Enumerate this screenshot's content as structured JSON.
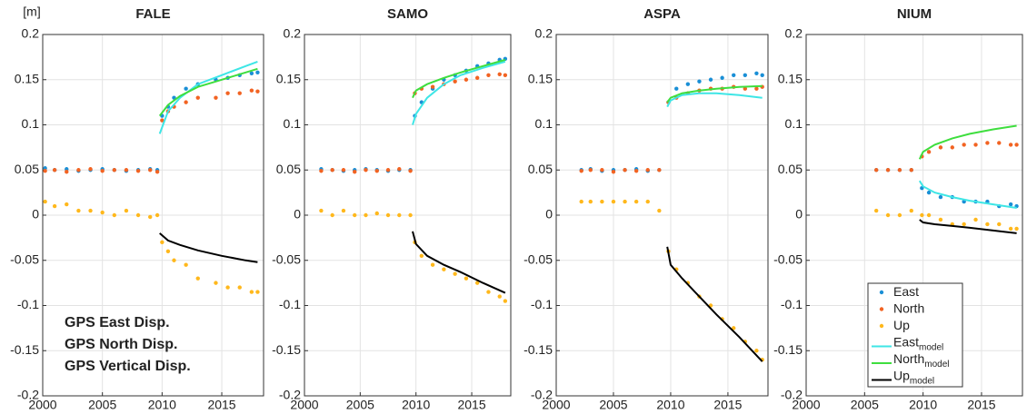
{
  "chart_data": [
    {
      "type": "scatter",
      "title": "FALE",
      "ylabel": "[m]",
      "xlim": [
        2000,
        2018.5
      ],
      "ylim": [
        -0.2,
        0.2
      ],
      "xticks": [
        2000,
        2005,
        2010,
        2015
      ],
      "yticks": [
        -0.2,
        -0.15,
        -0.1,
        -0.05,
        0,
        0.05,
        0.1,
        0.15,
        0.2
      ],
      "grid": true,
      "annotations": [
        "GPS East Disp.",
        "GPS North Disp.",
        "GPS Vertical Disp."
      ],
      "series": [
        {
          "name": "East",
          "color": "#1a8fd6",
          "style": "markers",
          "x": [
            2000.2,
            2001,
            2002,
            2003,
            2004,
            2005,
            2006,
            2007,
            2008,
            2009,
            2009.6,
            2010,
            2010.5,
            2011,
            2012,
            2013,
            2014.5,
            2015.5,
            2016.5,
            2017.5,
            2018
          ],
          "values": [
            0.052,
            0.05,
            0.051,
            0.049,
            0.05,
            0.051,
            0.05,
            0.049,
            0.05,
            0.051,
            0.05,
            0.11,
            0.12,
            0.13,
            0.14,
            0.145,
            0.15,
            0.152,
            0.155,
            0.157,
            0.158
          ]
        },
        {
          "name": "North",
          "color": "#f26322",
          "style": "markers",
          "x": [
            2000.2,
            2001,
            2002,
            2003,
            2004,
            2005,
            2006,
            2007,
            2008,
            2009,
            2009.6,
            2010,
            2010.5,
            2011,
            2012,
            2013,
            2014.5,
            2015.5,
            2016.5,
            2017.5,
            2018
          ],
          "values": [
            0.049,
            0.05,
            0.048,
            0.05,
            0.051,
            0.049,
            0.05,
            0.05,
            0.049,
            0.05,
            0.048,
            0.105,
            0.115,
            0.12,
            0.125,
            0.13,
            0.13,
            0.135,
            0.135,
            0.138,
            0.137
          ]
        },
        {
          "name": "Up",
          "color": "#ffb81c",
          "style": "markers",
          "x": [
            2000.2,
            2001,
            2002,
            2003,
            2004,
            2005,
            2006,
            2007,
            2008,
            2009,
            2009.6,
            2010,
            2010.5,
            2011,
            2012,
            2013,
            2014.5,
            2015.5,
            2016.5,
            2017.5,
            2018
          ],
          "values": [
            0.015,
            0.01,
            0.012,
            0.005,
            0.005,
            0.003,
            0,
            0.005,
            0,
            -0.002,
            0,
            -0.03,
            -0.04,
            -0.05,
            -0.055,
            -0.07,
            -0.075,
            -0.08,
            -0.08,
            -0.085,
            -0.085
          ]
        },
        {
          "name": "East",
          "name_sub": "model",
          "color": "#3ee6e6",
          "style": "line",
          "x": [
            2009.8,
            2010.5,
            2011.5,
            2013,
            2015,
            2017,
            2018
          ],
          "values": [
            0.09,
            0.115,
            0.13,
            0.145,
            0.155,
            0.165,
            0.17
          ]
        },
        {
          "name": "North",
          "name_sub": "model",
          "color": "#3ede3e",
          "style": "line",
          "x": [
            2009.8,
            2010.5,
            2011.5,
            2013,
            2015,
            2017,
            2018
          ],
          "values": [
            0.11,
            0.122,
            0.132,
            0.142,
            0.15,
            0.158,
            0.162
          ]
        },
        {
          "name": "Up",
          "name_sub": "model",
          "color": "#000000",
          "style": "line",
          "x": [
            2009.8,
            2010.5,
            2011.5,
            2013,
            2015,
            2017,
            2018
          ],
          "values": [
            -0.02,
            -0.028,
            -0.033,
            -0.039,
            -0.045,
            -0.05,
            -0.052
          ]
        }
      ]
    },
    {
      "type": "scatter",
      "title": "SAMO",
      "xlim": [
        2000,
        2018.5
      ],
      "ylim": [
        -0.2,
        0.2
      ],
      "xticks": [
        2000,
        2005,
        2010,
        2015
      ],
      "yticks": [
        -0.2,
        -0.15,
        -0.1,
        -0.05,
        0,
        0.05,
        0.1,
        0.15,
        0.2
      ],
      "grid": true,
      "series": [
        {
          "name": "East",
          "color": "#1a8fd6",
          "style": "markers",
          "x": [
            2001.5,
            2002.5,
            2003.5,
            2004.5,
            2005.5,
            2006.5,
            2007.5,
            2008.5,
            2009.5,
            2009.9,
            2010.5,
            2011.5,
            2012.5,
            2013.5,
            2014.5,
            2015.5,
            2016.5,
            2017.5,
            2018
          ],
          "values": [
            0.051,
            0.05,
            0.049,
            0.05,
            0.051,
            0.05,
            0.049,
            0.05,
            0.05,
            0.11,
            0.125,
            0.14,
            0.15,
            0.155,
            0.16,
            0.165,
            0.168,
            0.172,
            0.173
          ]
        },
        {
          "name": "North",
          "color": "#f26322",
          "style": "markers",
          "x": [
            2001.5,
            2002.5,
            2003.5,
            2004.5,
            2005.5,
            2006.5,
            2007.5,
            2008.5,
            2009.5,
            2009.9,
            2010.5,
            2011.5,
            2012.5,
            2013.5,
            2014.5,
            2015.5,
            2016.5,
            2017.5,
            2018
          ],
          "values": [
            0.049,
            0.05,
            0.05,
            0.048,
            0.05,
            0.049,
            0.05,
            0.051,
            0.049,
            0.135,
            0.14,
            0.142,
            0.145,
            0.148,
            0.15,
            0.152,
            0.155,
            0.156,
            0.155
          ]
        },
        {
          "name": "Up",
          "color": "#ffb81c",
          "style": "markers",
          "x": [
            2001.5,
            2002.5,
            2003.5,
            2004.5,
            2005.5,
            2006.5,
            2007.5,
            2008.5,
            2009.5,
            2009.9,
            2010.5,
            2011.5,
            2012.5,
            2013.5,
            2014.5,
            2015.5,
            2016.5,
            2017.5,
            2018
          ],
          "values": [
            0.005,
            0,
            0.005,
            0,
            0,
            0.002,
            0,
            0,
            0,
            -0.03,
            -0.045,
            -0.055,
            -0.06,
            -0.065,
            -0.07,
            -0.075,
            -0.085,
            -0.09,
            -0.095
          ]
        },
        {
          "name": "East",
          "name_sub": "model",
          "color": "#3ee6e6",
          "style": "line",
          "x": [
            2009.7,
            2010,
            2011,
            2012.5,
            2014,
            2016,
            2018
          ],
          "values": [
            0.1,
            0.112,
            0.13,
            0.145,
            0.155,
            0.163,
            0.17
          ]
        },
        {
          "name": "North",
          "name_sub": "model",
          "color": "#3ede3e",
          "style": "line",
          "x": [
            2009.7,
            2010,
            2011,
            2012.5,
            2014,
            2016,
            2018
          ],
          "values": [
            0.13,
            0.138,
            0.145,
            0.152,
            0.158,
            0.165,
            0.172
          ]
        },
        {
          "name": "Up",
          "name_sub": "model",
          "color": "#000000",
          "style": "line",
          "x": [
            2009.7,
            2010,
            2011,
            2012.5,
            2014,
            2016,
            2018
          ],
          "values": [
            -0.018,
            -0.032,
            -0.045,
            -0.055,
            -0.063,
            -0.075,
            -0.086
          ]
        }
      ]
    },
    {
      "type": "scatter",
      "title": "ASPA",
      "xlim": [
        2000,
        2018.5
      ],
      "ylim": [
        -0.2,
        0.2
      ],
      "xticks": [
        2000,
        2005,
        2010,
        2015
      ],
      "yticks": [
        -0.2,
        -0.15,
        -0.1,
        -0.05,
        0,
        0.05,
        0.1,
        0.15,
        0.2
      ],
      "grid": true,
      "series": [
        {
          "name": "East",
          "color": "#1a8fd6",
          "style": "markers",
          "x": [
            2002.2,
            2003,
            2004,
            2005,
            2006,
            2007,
            2008,
            2009,
            2009.8,
            2010.5,
            2011.5,
            2012.5,
            2013.5,
            2014.5,
            2015.5,
            2016.5,
            2017.5,
            2018
          ],
          "values": [
            0.05,
            0.051,
            0.049,
            0.05,
            0.05,
            0.051,
            0.049,
            0.05,
            0.125,
            0.14,
            0.145,
            0.148,
            0.15,
            0.152,
            0.155,
            0.155,
            0.157,
            0.155
          ]
        },
        {
          "name": "North",
          "color": "#f26322",
          "style": "markers",
          "x": [
            2002.2,
            2003,
            2004,
            2005,
            2006,
            2007,
            2008,
            2009,
            2009.8,
            2010.5,
            2011.5,
            2012.5,
            2013.5,
            2014.5,
            2015.5,
            2016.5,
            2017.5,
            2018
          ],
          "values": [
            0.049,
            0.05,
            0.05,
            0.048,
            0.05,
            0.049,
            0.05,
            0.05,
            0.125,
            0.13,
            0.135,
            0.138,
            0.14,
            0.14,
            0.142,
            0.14,
            0.14,
            0.142
          ]
        },
        {
          "name": "Up",
          "color": "#ffb81c",
          "style": "markers",
          "x": [
            2002.2,
            2003,
            2004,
            2005,
            2006,
            2007,
            2008,
            2009,
            2009.8,
            2010.5,
            2011.5,
            2012.5,
            2013.5,
            2014.5,
            2015.5,
            2016.5,
            2017.5,
            2018
          ],
          "values": [
            0.015,
            0.015,
            0.015,
            0.015,
            0.015,
            0.015,
            0.015,
            0.005,
            -0.04,
            -0.06,
            -0.075,
            -0.09,
            -0.1,
            -0.115,
            -0.125,
            -0.14,
            -0.15,
            -0.16
          ]
        },
        {
          "name": "East",
          "name_sub": "model",
          "color": "#3ee6e6",
          "style": "line",
          "x": [
            2009.7,
            2010,
            2011,
            2012.5,
            2014,
            2016,
            2018
          ],
          "values": [
            0.12,
            0.127,
            0.133,
            0.135,
            0.135,
            0.133,
            0.13
          ]
        },
        {
          "name": "North",
          "name_sub": "model",
          "color": "#3ede3e",
          "style": "line",
          "x": [
            2009.7,
            2010,
            2011,
            2012.5,
            2014,
            2016,
            2018
          ],
          "values": [
            0.125,
            0.13,
            0.135,
            0.138,
            0.14,
            0.142,
            0.143
          ]
        },
        {
          "name": "Up",
          "name_sub": "model",
          "color": "#000000",
          "style": "line",
          "x": [
            2009.7,
            2010,
            2011,
            2012.5,
            2014,
            2016,
            2018
          ],
          "values": [
            -0.035,
            -0.055,
            -0.07,
            -0.09,
            -0.11,
            -0.135,
            -0.162
          ]
        }
      ]
    },
    {
      "type": "scatter",
      "title": "NIUM",
      "legend": "lower right",
      "xlim": [
        2000,
        2018.5
      ],
      "ylim": [
        -0.2,
        0.2
      ],
      "xticks": [
        2000,
        2005,
        2010,
        2015
      ],
      "yticks": [
        -0.2,
        -0.15,
        -0.1,
        -0.05,
        0,
        0.05,
        0.1,
        0.15,
        0.2
      ],
      "grid": true,
      "series": [
        {
          "name": "East",
          "color": "#1a8fd6",
          "style": "markers",
          "x": [
            2006,
            2007,
            2008,
            2009,
            2009.9,
            2010.5,
            2011.5,
            2012.5,
            2013.5,
            2014.5,
            2015.5,
            2016.5,
            2017.5,
            2018
          ],
          "values": [
            0.05,
            0.05,
            0.05,
            0.05,
            0.03,
            0.025,
            0.02,
            0.02,
            0.015,
            0.015,
            0.015,
            0.01,
            0.012,
            0.01
          ]
        },
        {
          "name": "North",
          "color": "#f26322",
          "style": "markers",
          "x": [
            2006,
            2007,
            2008,
            2009,
            2009.9,
            2010.5,
            2011.5,
            2012.5,
            2013.5,
            2014.5,
            2015.5,
            2016.5,
            2017.5,
            2018
          ],
          "values": [
            0.05,
            0.05,
            0.05,
            0.05,
            0.065,
            0.07,
            0.075,
            0.075,
            0.078,
            0.078,
            0.08,
            0.08,
            0.078,
            0.078
          ]
        },
        {
          "name": "Up",
          "color": "#ffb81c",
          "style": "markers",
          "x": [
            2006,
            2007,
            2008,
            2009,
            2009.9,
            2010.5,
            2011.5,
            2012.5,
            2013.5,
            2014.5,
            2015.5,
            2016.5,
            2017.5,
            2018
          ],
          "values": [
            0.005,
            0,
            0,
            0.005,
            0,
            0,
            -0.005,
            -0.01,
            -0.01,
            -0.005,
            -0.01,
            -0.01,
            -0.015,
            -0.015
          ]
        },
        {
          "name": "East",
          "name_sub": "model",
          "color": "#3ee6e6",
          "style": "line",
          "x": [
            2009.7,
            2010,
            2011,
            2012.5,
            2014,
            2016,
            2018
          ],
          "values": [
            0.038,
            0.032,
            0.025,
            0.02,
            0.016,
            0.012,
            0.008
          ]
        },
        {
          "name": "North",
          "name_sub": "model",
          "color": "#3ede3e",
          "style": "line",
          "x": [
            2009.7,
            2010,
            2011,
            2012.5,
            2014,
            2016,
            2018
          ],
          "values": [
            0.062,
            0.07,
            0.078,
            0.085,
            0.09,
            0.095,
            0.099
          ]
        },
        {
          "name": "Up",
          "name_sub": "model",
          "color": "#000000",
          "style": "line",
          "x": [
            2009.7,
            2010,
            2011,
            2012.5,
            2014,
            2016,
            2018
          ],
          "values": [
            -0.005,
            -0.008,
            -0.01,
            -0.012,
            -0.014,
            -0.017,
            -0.02
          ]
        }
      ]
    }
  ]
}
